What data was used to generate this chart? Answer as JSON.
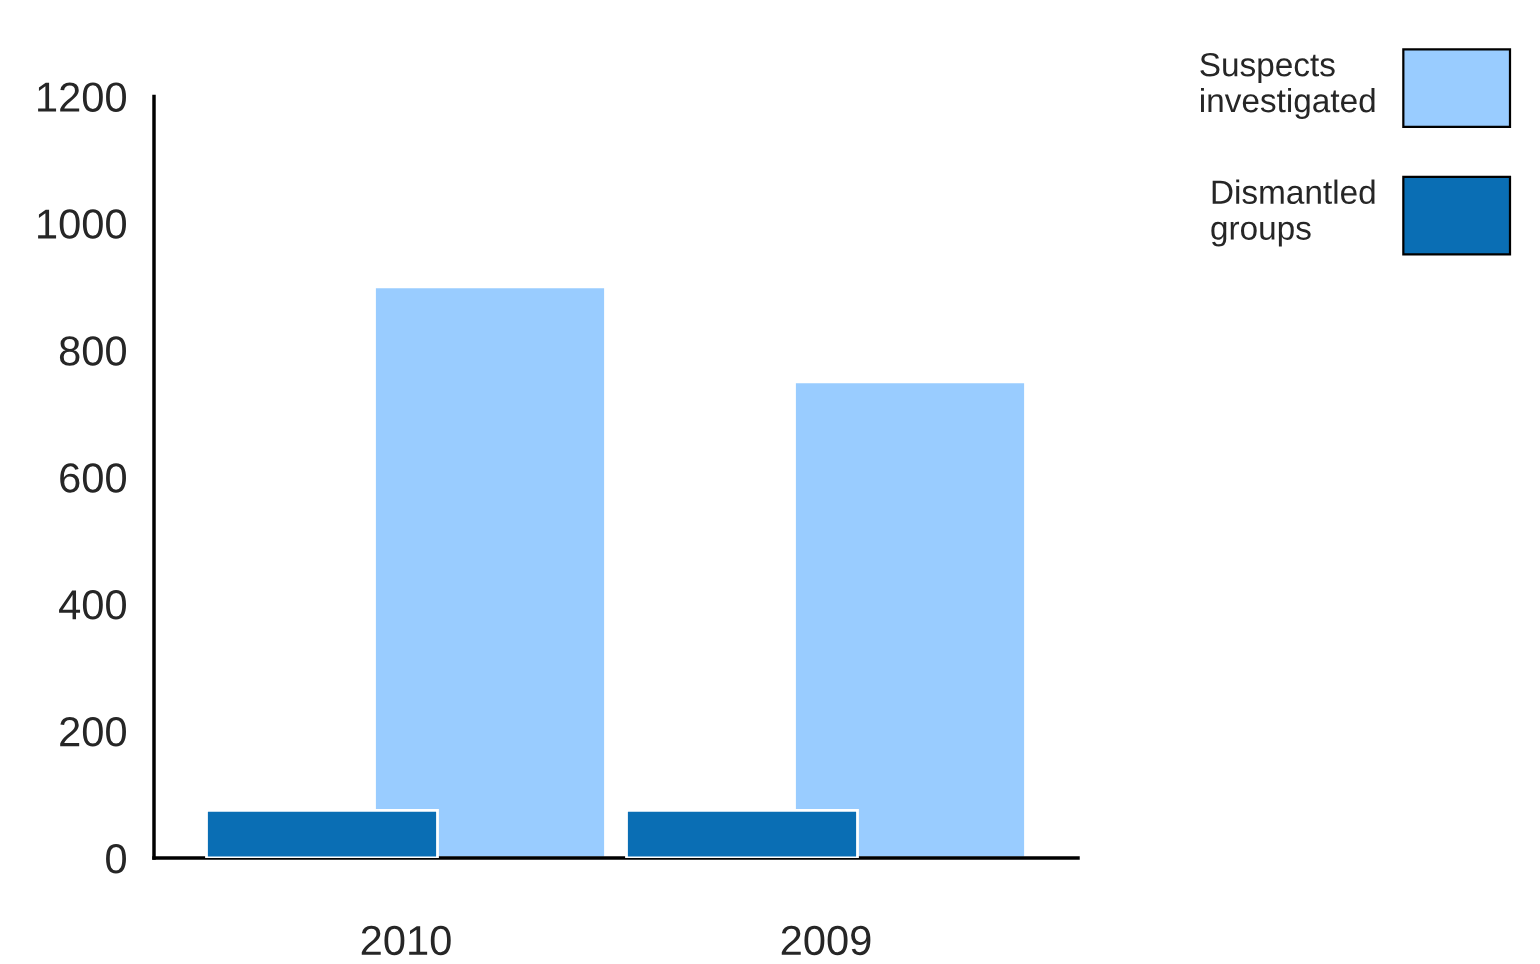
{
  "chart_data": {
    "type": "bar",
    "categories": [
      "2010",
      "2009"
    ],
    "series": [
      {
        "name": "Suspects investigated",
        "color": "#99ccff",
        "values": [
          900,
          750
        ]
      },
      {
        "name": "Dismantled groups",
        "color": "#0a6eb4",
        "values": [
          75,
          75
        ]
      }
    ],
    "ylim": [
      0,
      1200
    ],
    "yticks": [
      0,
      200,
      400,
      600,
      800,
      1000,
      1200
    ],
    "grid": false,
    "legend": "top right"
  }
}
